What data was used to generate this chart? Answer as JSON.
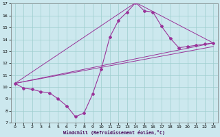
{
  "bg_color": "#cce8ee",
  "line_color": "#993399",
  "xlim": [
    -0.5,
    23.5
  ],
  "ylim": [
    7,
    17
  ],
  "xticks": [
    0,
    1,
    2,
    3,
    4,
    5,
    6,
    7,
    8,
    9,
    10,
    11,
    12,
    13,
    14,
    15,
    16,
    17,
    18,
    19,
    20,
    21,
    22,
    23
  ],
  "yticks": [
    7,
    8,
    9,
    10,
    11,
    12,
    13,
    14,
    15,
    16,
    17
  ],
  "grid_color": "#9ecece",
  "xlabel": "Windchill (Refroidissement éolien,°C)",
  "curve_x": [
    0,
    1,
    2,
    3,
    4,
    5,
    6,
    7,
    8,
    9,
    10,
    11,
    12,
    13,
    14,
    15,
    16,
    17,
    18,
    19,
    20,
    21,
    22,
    23
  ],
  "curve_y": [
    10.3,
    9.9,
    9.8,
    9.6,
    9.5,
    9.0,
    8.4,
    7.5,
    7.8,
    9.4,
    11.5,
    14.2,
    15.6,
    16.3,
    17.1,
    16.4,
    16.3,
    15.1,
    14.1,
    13.3,
    13.4,
    13.5,
    13.6,
    13.7
  ],
  "line2_x": [
    0,
    14,
    23
  ],
  "line2_y": [
    10.3,
    17.1,
    13.7
  ],
  "line3_x": [
    0,
    23
  ],
  "line3_y": [
    10.3,
    13.7
  ],
  "line4_x": [
    0,
    23
  ],
  "line4_y": [
    10.3,
    13.4
  ]
}
